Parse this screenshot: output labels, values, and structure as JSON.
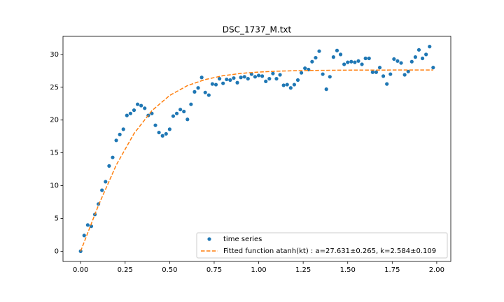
{
  "chart_data": {
    "type": "scatter",
    "title": "DSC_1737_M.txt",
    "legend": "lower right",
    "xlim": [
      -0.099,
      2.079
    ],
    "ylim": [
      -1.56,
      32.76
    ],
    "xticks": [
      {
        "value": 0,
        "label": "0.00"
      },
      {
        "value": 0.25,
        "label": "0.25"
      },
      {
        "value": 0.5,
        "label": "0.50"
      },
      {
        "value": 0.75,
        "label": "0.75"
      },
      {
        "value": 1,
        "label": "1.00"
      },
      {
        "value": 1.25,
        "label": "1.25"
      },
      {
        "value": 1.5,
        "label": "1.50"
      },
      {
        "value": 1.75,
        "label": "1.75"
      },
      {
        "value": 2,
        "label": "2.00"
      }
    ],
    "yticks": [
      0,
      5,
      10,
      15,
      20,
      25,
      30
    ],
    "series": [
      {
        "name": "time series",
        "color": "#1f77b4",
        "kind": "scatter",
        "x": [
          0,
          0.02,
          0.04,
          0.06,
          0.08,
          0.1,
          0.12,
          0.14,
          0.16,
          0.18,
          0.2,
          0.22,
          0.24,
          0.26,
          0.28,
          0.3,
          0.32,
          0.34,
          0.36,
          0.38,
          0.4,
          0.42,
          0.44,
          0.46,
          0.48,
          0.5,
          0.52,
          0.54,
          0.56,
          0.58,
          0.6,
          0.62,
          0.64,
          0.66,
          0.68,
          0.7,
          0.72,
          0.74,
          0.76,
          0.78,
          0.8,
          0.82,
          0.84,
          0.86,
          0.88,
          0.9,
          0.92,
          0.94,
          0.96,
          0.98,
          1,
          1.02,
          1.04,
          1.06,
          1.08,
          1.1,
          1.12,
          1.14,
          1.16,
          1.18,
          1.2,
          1.22,
          1.24,
          1.26,
          1.28,
          1.3,
          1.32,
          1.34,
          1.36,
          1.38,
          1.4,
          1.42,
          1.44,
          1.46,
          1.48,
          1.5,
          1.52,
          1.54,
          1.56,
          1.58,
          1.6,
          1.62,
          1.64,
          1.66,
          1.68,
          1.7,
          1.72,
          1.74,
          1.76,
          1.78,
          1.8,
          1.82,
          1.84,
          1.86,
          1.88,
          1.9,
          1.92,
          1.94,
          1.96,
          1.98
        ],
        "values": [
          0,
          2.4,
          4.0,
          3.8,
          5.6,
          7.2,
          9.3,
          10.6,
          13.0,
          14.3,
          16.9,
          17.8,
          18.6,
          20.7,
          21.0,
          21.5,
          22.4,
          22.2,
          21.8,
          20.7,
          21.0,
          19.2,
          18.1,
          17.6,
          17.9,
          18.6,
          20.6,
          21.0,
          21.6,
          21.3,
          20.1,
          22.4,
          24.3,
          24.9,
          26.5,
          24.2,
          23.8,
          25.5,
          25.4,
          26.3,
          25.6,
          26.2,
          26.1,
          26.4,
          25.7,
          26.5,
          26.6,
          26.3,
          27.0,
          26.6,
          26.8,
          26.7,
          25.9,
          26.3,
          27.1,
          26.3,
          26.9,
          25.3,
          25.4,
          24.9,
          25.4,
          26.1,
          27.2,
          27.9,
          27.7,
          28.9,
          29.5,
          30.5,
          27.0,
          24.7,
          26.6,
          29.6,
          30.6,
          30.0,
          28.5,
          28.8,
          28.9,
          28.8,
          29.0,
          28.5,
          29.4,
          29.4,
          27.3,
          27.3,
          28.0,
          26.7,
          25.5,
          27.0,
          29.3,
          29.0,
          28.7,
          26.9,
          27.4,
          28.9,
          29.6,
          30.7,
          29.4,
          30.0,
          31.2,
          28.0
        ]
      },
      {
        "name": "Fitted function atanh(kt) : a=27.631±0.265, k=2.584±0.109",
        "color": "#ff7f0e",
        "kind": "line",
        "x": [
          0,
          0.1,
          0.2,
          0.3,
          0.4,
          0.5,
          0.6,
          0.7,
          0.8,
          0.9,
          1,
          1.1,
          1.2,
          1.3,
          1.4,
          1.5,
          1.6,
          1.7,
          1.8,
          1.9,
          1.98
        ],
        "values": [
          0,
          6.99,
          13.13,
          17.95,
          21.42,
          23.75,
          25.25,
          26.18,
          26.76,
          27.11,
          27.32,
          27.44,
          27.52,
          27.56,
          27.59,
          27.61,
          27.62,
          27.62,
          27.63,
          27.63,
          27.63
        ]
      }
    ]
  }
}
